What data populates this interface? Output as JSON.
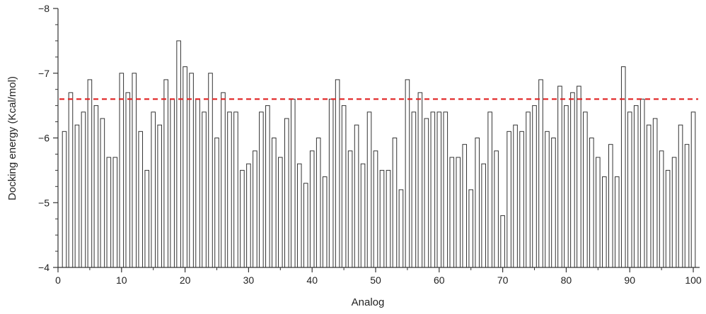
{
  "chart_data": {
    "type": "bar",
    "title": "",
    "xlabel": "Analog",
    "ylabel": "Docking energy (Kcal/mol)",
    "ylim": [
      -4,
      -8
    ],
    "y_axis_inverted": true,
    "y_ticks": [
      -8,
      -7,
      -6,
      -5,
      -4
    ],
    "y_tick_labels": [
      "−8",
      "−7",
      "−6",
      "−5",
      "−4"
    ],
    "x_range": [
      0,
      101
    ],
    "x_ticks": [
      0,
      10,
      20,
      30,
      40,
      50,
      60,
      70,
      80,
      90,
      100
    ],
    "x_tick_labels": [
      "0",
      "10",
      "20",
      "30",
      "40",
      "50",
      "60",
      "70",
      "80",
      "90",
      "100"
    ],
    "threshold": {
      "value": -6.6,
      "style": "dashed",
      "color": "#e02020"
    },
    "bar_fill": "#ffffff",
    "bar_stroke": "#333333",
    "grid": false,
    "x": [
      1,
      2,
      3,
      4,
      5,
      6,
      7,
      8,
      9,
      10,
      11,
      12,
      13,
      14,
      15,
      16,
      17,
      18,
      19,
      20,
      21,
      22,
      23,
      24,
      25,
      26,
      27,
      28,
      29,
      30,
      31,
      32,
      33,
      34,
      35,
      36,
      37,
      38,
      39,
      40,
      41,
      42,
      43,
      44,
      45,
      46,
      47,
      48,
      49,
      50,
      51,
      52,
      53,
      54,
      55,
      56,
      57,
      58,
      59,
      60,
      61,
      62,
      63,
      64,
      65,
      66,
      67,
      68,
      69,
      70,
      71,
      72,
      73,
      74,
      75,
      76,
      77,
      78,
      79,
      80,
      81,
      82,
      83,
      84,
      85,
      86,
      87,
      88,
      89,
      90,
      91,
      92,
      93,
      94,
      95,
      96,
      97,
      98,
      99,
      100
    ],
    "values": [
      -6.1,
      -6.7,
      -6.2,
      -6.4,
      -6.9,
      -6.5,
      -6.3,
      -5.7,
      -5.7,
      -7.0,
      -6.7,
      -7.0,
      -6.1,
      -5.5,
      -6.4,
      -6.2,
      -6.9,
      -6.6,
      -7.5,
      -7.1,
      -7.0,
      -6.6,
      -6.4,
      -7.0,
      -6.0,
      -6.7,
      -6.4,
      -6.4,
      -5.5,
      -5.6,
      -5.8,
      -6.4,
      -6.5,
      -6.0,
      -5.7,
      -6.3,
      -6.6,
      -5.6,
      -5.3,
      -5.8,
      -6.0,
      -5.4,
      -6.6,
      -6.9,
      -6.5,
      -5.8,
      -6.2,
      -5.6,
      -6.4,
      -5.8,
      -5.5,
      -5.5,
      -6.0,
      -5.2,
      -6.9,
      -6.4,
      -6.7,
      -6.3,
      -6.4,
      -6.4,
      -6.4,
      -5.7,
      -5.7,
      -5.9,
      -5.2,
      -6.0,
      -5.6,
      -6.4,
      -5.8,
      -4.8,
      -6.1,
      -6.2,
      -6.1,
      -6.4,
      -6.5,
      -6.9,
      -6.1,
      -6.0,
      -6.8,
      -6.5,
      -6.7,
      -6.8,
      -6.4,
      -6.0,
      -5.7,
      -5.4,
      -5.9,
      -5.4,
      -7.1,
      -6.4,
      -6.5,
      -6.6,
      -6.2,
      -6.3,
      -5.8,
      -5.5,
      -5.7,
      -6.2,
      -5.9,
      -6.4
    ]
  }
}
